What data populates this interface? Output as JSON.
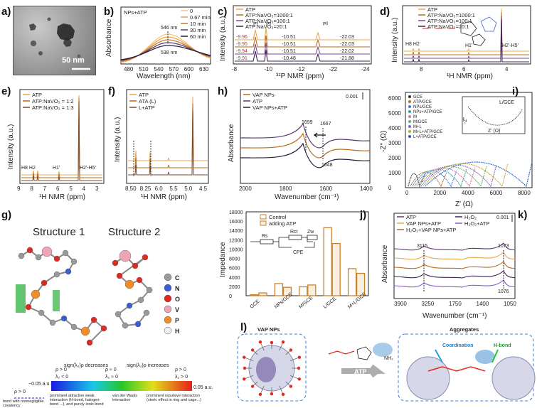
{
  "labels": {
    "a": "a)",
    "b": "b)",
    "c": "c)",
    "d": "d)",
    "e": "e)",
    "f": "f)",
    "g": "g)",
    "h": "h)",
    "i": "i)",
    "j": "j)",
    "k": "k)",
    "l": "l)"
  },
  "panel_a": {
    "scale": "50 nm"
  },
  "panel_b": {
    "title": "NPs+ATP",
    "legend": [
      "0",
      "0.67 min",
      "10 min",
      "30 min",
      "60 min"
    ],
    "colors": [
      "#f4c77a",
      "#e9a24e",
      "#c67c2c",
      "#5b3a6e",
      "#2b1d3c"
    ],
    "xlabel": "Wavelength (nm)",
    "ylabel": "Absorbance",
    "xticks": [
      "480",
      "510",
      "540",
      "570",
      "600",
      "630"
    ],
    "annot_top": "546 nm",
    "annot_bottom": "538 nm"
  },
  "panel_c": {
    "legend": [
      "ATP",
      "ATP:NaVO₃=1000:1",
      "ATP:NaVO₃=100:1",
      "ATP:NaVO₃=20:1"
    ],
    "colors": [
      "#e8a84a",
      "#b96a1c",
      "#7a4a8a",
      "#3d2256"
    ],
    "xlabel": "³¹P NMR (ppm)",
    "ylabel": "Intensity (a.u.)",
    "xticks": [
      "-8",
      "-10",
      "-12",
      "-22",
      "-24"
    ],
    "peak_labels": [
      "Pᵞ",
      "Pᵅ",
      "Pᵝ"
    ],
    "left_vals": [
      "-9.96",
      "-9.95",
      "-9.94",
      "-9.91"
    ],
    "mid_vals": [
      "-10.51",
      "-10.51",
      "-10.51",
      "-10.48"
    ],
    "right_vals": [
      "-22.03",
      "-22.03",
      "-22.02",
      "-21.88"
    ]
  },
  "panel_d": {
    "legend": [
      "ATP",
      "ATP:NaVO₃=1000:1",
      "ATP:NaVO₃=100:1",
      "ATP:NaVO₃=20:1"
    ],
    "xlabel": "¹H NMR (ppm)",
    "ylabel": "Intensity (a.u.)",
    "xticks": [
      "8",
      "6",
      "4"
    ],
    "peaks": [
      "H8 H2",
      "H1'",
      "H2'-H5'"
    ]
  },
  "panel_e": {
    "legend": [
      "ATP",
      "ATP:NaVO₃ = 1:2",
      "ATP:NaVO₃ = 1:3"
    ],
    "xlabel": "¹H NMR (ppm)",
    "ylabel": "Intensity (a.u.)",
    "xticks": [
      "9",
      "8",
      "7",
      "6",
      "5",
      "4",
      "3"
    ],
    "peaks": [
      "H8 H2",
      "H1'",
      "H2'-H5'"
    ]
  },
  "panel_f": {
    "legend": [
      "ATP",
      "ATA (L)",
      "L+ATP"
    ],
    "xlabel": "¹H NMR (ppm)",
    "ylabel": "Intensity (a.u.)",
    "xticks": [
      "8.50",
      "8.25",
      "6.0",
      "5.5",
      "5.0",
      "4.5"
    ]
  },
  "panel_g": {
    "structure1": "Structure 1",
    "structure2": "Structure 2",
    "atoms": [
      "C",
      "N",
      "O",
      "V",
      "P",
      "H"
    ],
    "atom_colors": [
      "#9a9a9a",
      "#3a5fd1",
      "#e0291f",
      "#f0a5b5",
      "#f28c28",
      "#eeeeee"
    ],
    "rho_left": "ρ > 0",
    "rho_mid": "ρ ≈ 0",
    "rho_right": "ρ > 0",
    "lam_left": "λ₂ < 0",
    "lam_mid": "λ₂ ≈ 0",
    "lam_right": "λ₂ > 0",
    "sign_dec": "sign(λ₂)ρ decreases",
    "sign_inc": "sign(λ₂)ρ increases",
    "scale_min": "−0.05 a.u.",
    "scale_max": "0.05 a.u.",
    "rho_far": "ρ > 0",
    "desc_covalent": "bond with nonnegligible covalency",
    "desc_attract": "prominent attractive weak interaction (H-bond, halogen-bond ...), and purely ionic bond",
    "desc_vdw": "van der Waals interaction",
    "desc_repulsive": "prominent repulsive interaction (steric effect in ring and cage...)"
  },
  "panel_h": {
    "legend": [
      "VAP NPs",
      "ATP",
      "VAP NPs+ATP"
    ],
    "colors": [
      "#b96a1c",
      "#5b3a6e",
      "#2b1d3c"
    ],
    "xlabel": "Wavenumber (cm⁻¹)",
    "ylabel": "Absorbance",
    "xticks": [
      "2000",
      "1800",
      "1600",
      "1400"
    ],
    "scale": "0.001",
    "annots": [
      "1699",
      "1667",
      "1648"
    ]
  },
  "panel_i": {
    "legend": [
      "GCE",
      "ATP/GCE",
      "NPs/GCE",
      "NPs+ATP/GCE",
      "M",
      "M/GCE",
      "M+L",
      "M+L+ATP/GCE",
      "L+ATP/GCE"
    ],
    "colors": [
      "#333333",
      "#b96a1c",
      "#3b7dd8",
      "#2aa1a1",
      "#e86a9c",
      "#5ab55a",
      "#8a5ad0",
      "#c4a52a",
      "#1a5fc8"
    ],
    "xlabel": "Z' (Ω)",
    "ylabel": "-Z'' (Ω)",
    "xticks": [
      "0",
      "2000",
      "4000",
      "6000",
      "8000"
    ],
    "yticks": [
      "0",
      "1000",
      "2000",
      "3000",
      "4000",
      "5000",
      "6000"
    ],
    "inset_legend": "L/GCE",
    "inset_xlabel": "Z' (Ω)",
    "inset_ylabel": "-Z''"
  },
  "panel_j": {
    "chart_data": {
      "type": "bar",
      "categories": [
        "GCE",
        "NPs/GCE",
        "M/GCE",
        "L/GCE",
        "M+L/GCE"
      ],
      "series": [
        {
          "name": "Control",
          "values": [
            200,
            2600,
            1900,
            14600,
            5800
          ]
        },
        {
          "name": "adding ATP",
          "values": [
            600,
            1800,
            2300,
            11200,
            4800
          ]
        }
      ],
      "ylabel": "Impedance",
      "yticks": [
        "0",
        "2000",
        "4000",
        "6000",
        "8000",
        "10000",
        "12000",
        "14000",
        "16000",
        "18000"
      ],
      "ylim": [
        0,
        18000
      ],
      "circuit": [
        "Rs",
        "Rct",
        "Zw",
        "CPE"
      ]
    },
    "color": "#c8822f"
  },
  "panel_k": {
    "legend": [
      "ATP",
      "VAP NPs+ATP",
      "H₂O₂+VAP NPs+ATP",
      "H₂O₂",
      "H₂O₂+ATP"
    ],
    "colors": [
      "#5b3a6e",
      "#e8a84a",
      "#b96a1c",
      "#3d2256",
      "#8a5ad0"
    ],
    "xlabel": "Wavenumber (cm⁻¹)",
    "ylabel": "Absorbance",
    "xticks": [
      "3900",
      "3250",
      "1750",
      "1400",
      "1050"
    ],
    "scale": "0.001",
    "annots": [
      "3115",
      "1073",
      "1076"
    ]
  },
  "panel_l": {
    "left_title": "VAP NPs",
    "right_title": "Aggregates",
    "arrow_label": "ATP",
    "coordination": "Coordination",
    "hbond": "H-bond",
    "nh2": "NH₂"
  }
}
